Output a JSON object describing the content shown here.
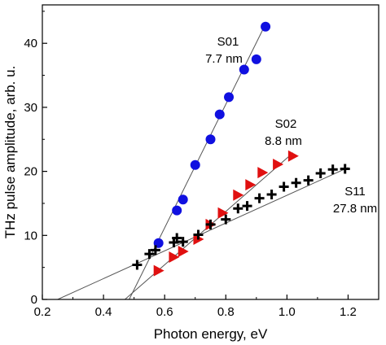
{
  "chart_data": {
    "type": "scatter",
    "xlabel": "Photon energy, eV",
    "ylabel": "THz pulse amplitude, arb. u.",
    "xlim": [
      0.2,
      1.3
    ],
    "ylim": [
      0,
      46
    ],
    "xticks": [
      0.2,
      0.4,
      0.6,
      0.8,
      1.0,
      1.2
    ],
    "xtick_labels": [
      "0.2",
      "0.4",
      "0.6",
      "0.8",
      "1.0",
      "1.2"
    ],
    "yticks": [
      0,
      10,
      20,
      30,
      40
    ],
    "ytick_labels": [
      "0",
      "10",
      "20",
      "30",
      "40"
    ],
    "grid": false,
    "series": [
      {
        "key": "s01",
        "marker": "circle",
        "color": "#1010e0",
        "points": [
          [
            0.58,
            8.8
          ],
          [
            0.64,
            13.9
          ],
          [
            0.66,
            15.6
          ],
          [
            0.7,
            21.0
          ],
          [
            0.75,
            25.0
          ],
          [
            0.78,
            28.9
          ],
          [
            0.81,
            31.6
          ],
          [
            0.86,
            35.9
          ],
          [
            0.9,
            37.5
          ],
          [
            0.93,
            42.6
          ]
        ],
        "fit": [
          [
            0.484,
            0.0
          ],
          [
            0.93,
            43.0
          ]
        ]
      },
      {
        "key": "s02",
        "marker": "triangle-right",
        "color": "#e01010",
        "points": [
          [
            0.58,
            4.5
          ],
          [
            0.63,
            6.6
          ],
          [
            0.66,
            7.5
          ],
          [
            0.71,
            9.4
          ],
          [
            0.75,
            11.7
          ],
          [
            0.79,
            13.5
          ],
          [
            0.84,
            16.3
          ],
          [
            0.88,
            17.9
          ],
          [
            0.92,
            19.8
          ],
          [
            0.97,
            21.1
          ],
          [
            1.02,
            22.4
          ]
        ],
        "fit": [
          [
            0.47,
            0.0
          ],
          [
            1.02,
            22.9
          ]
        ]
      },
      {
        "key": "s11",
        "marker": "plus",
        "color": "#000000",
        "points": [
          [
            0.51,
            5.4
          ],
          [
            0.55,
            7.1
          ],
          [
            0.57,
            7.7
          ],
          [
            0.63,
            8.9
          ],
          [
            0.64,
            9.6
          ],
          [
            0.66,
            9.0
          ],
          [
            0.71,
            10.1
          ],
          [
            0.75,
            11.7
          ],
          [
            0.8,
            12.5
          ],
          [
            0.84,
            14.2
          ],
          [
            0.87,
            14.6
          ],
          [
            0.91,
            15.8
          ],
          [
            0.95,
            16.4
          ],
          [
            0.99,
            17.6
          ],
          [
            1.03,
            18.2
          ],
          [
            1.07,
            18.6
          ],
          [
            1.11,
            19.7
          ],
          [
            1.15,
            20.3
          ],
          [
            1.19,
            20.4
          ]
        ],
        "fit": [
          [
            0.25,
            0.0
          ],
          [
            1.2,
            20.6
          ]
        ]
      }
    ],
    "annotations": [
      {
        "key": "s01",
        "lines": [
          "S01",
          "7.7 nm"
        ]
      },
      {
        "key": "s02",
        "lines": [
          "S02",
          "8.8 nm"
        ]
      },
      {
        "key": "s11",
        "lines": [
          "S11",
          "27.8 nm"
        ]
      }
    ]
  }
}
